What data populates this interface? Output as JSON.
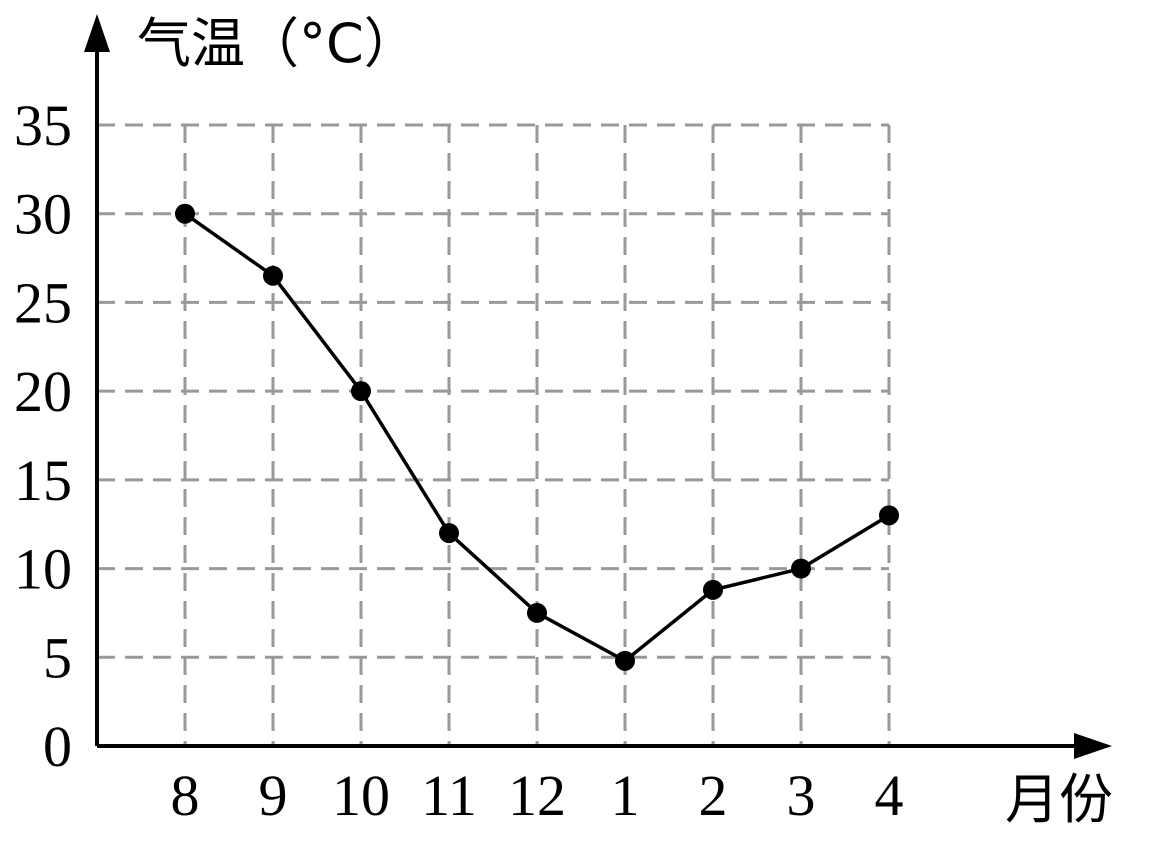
{
  "chart_data": {
    "type": "line",
    "ylabel": "气温（°C）",
    "xlabel": "月份",
    "categories": [
      "8",
      "9",
      "10",
      "11",
      "12",
      "1",
      "2",
      "3",
      "4"
    ],
    "series": [
      {
        "values": [
          30,
          26.5,
          20,
          12,
          7.5,
          4.8,
          8.8,
          10,
          13
        ]
      }
    ],
    "yticks": [
      "0",
      "5",
      "10",
      "15",
      "20",
      "25",
      "30",
      "35"
    ],
    "ylim": [
      0,
      35
    ],
    "grid": true,
    "grid_style": "dashed",
    "line_color": "#000000",
    "grid_color": "#999999"
  }
}
